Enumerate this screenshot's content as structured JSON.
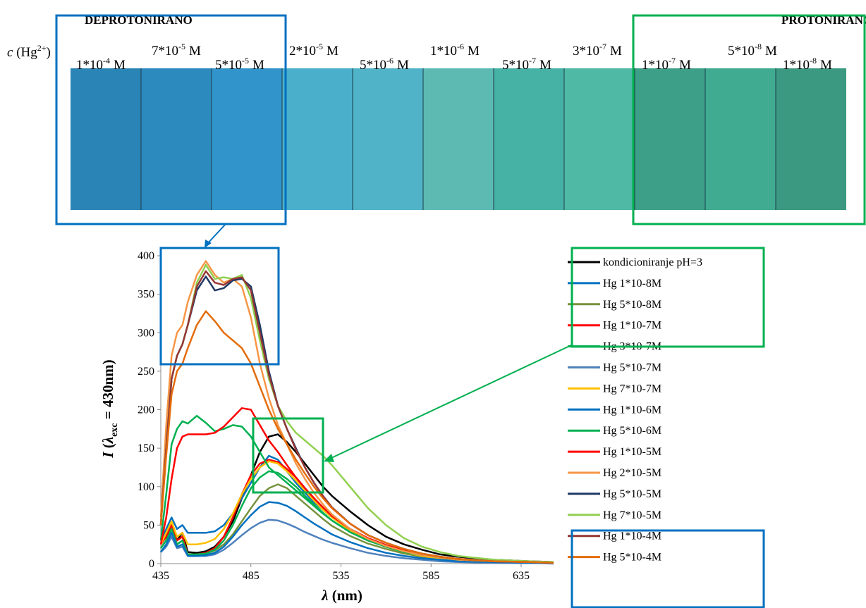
{
  "header": {
    "left": "DEPROTONIRANO",
    "right": "PROTONIRANO"
  },
  "strip": {
    "concentration_label": [
      "c",
      " (Hg",
      "2+",
      ")"
    ],
    "labels": [
      {
        "mantissa": "1*10",
        "exponent": "-4",
        "unit": "M"
      },
      {
        "mantissa": "7*10",
        "exponent": "-5",
        "unit": "M"
      },
      {
        "mantissa": "5*10",
        "exponent": "-5",
        "unit": "M"
      },
      {
        "mantissa": "2*10",
        "exponent": "-5",
        "unit": "M"
      },
      {
        "mantissa": "5*10",
        "exponent": "-6",
        "unit": "M"
      },
      {
        "mantissa": "1*10",
        "exponent": "-6",
        "unit": "M"
      },
      {
        "mantissa": "5*10",
        "exponent": "-7",
        "unit": "M"
      },
      {
        "mantissa": "3*10",
        "exponent": "-7",
        "unit": "M"
      },
      {
        "mantissa": "1*10",
        "exponent": "-7",
        "unit": "M"
      },
      {
        "mantissa": "5*10",
        "exponent": "-8",
        "unit": "M"
      },
      {
        "mantissa": "1*10",
        "exponent": "-8",
        "unit": "M"
      }
    ]
  },
  "chart_data": {
    "type": "line",
    "y_label": [
      "I",
      " (",
      "λ",
      "exc",
      " = 430nm)"
    ],
    "x_label": [
      "λ",
      " (nm)"
    ],
    "xlim": [
      435,
      653
    ],
    "xticks": [
      435,
      485,
      535,
      585,
      635
    ],
    "ylim": [
      0,
      400
    ],
    "yticks": [
      0,
      50,
      100,
      150,
      200,
      250,
      300,
      350,
      400
    ],
    "grid": false,
    "x": [
      435,
      438,
      441,
      444,
      447,
      450,
      455,
      460,
      465,
      470,
      475,
      480,
      485,
      490,
      495,
      500,
      505,
      510,
      515,
      520,
      525,
      530,
      540,
      550,
      560,
      570,
      580,
      590,
      600,
      620,
      640,
      653
    ],
    "series": [
      {
        "name": "kondicioniranje pH=3",
        "color": "#000000",
        "values": [
          25,
          35,
          50,
          30,
          40,
          15,
          14,
          16,
          22,
          35,
          55,
          85,
          115,
          145,
          165,
          168,
          158,
          145,
          130,
          115,
          100,
          88,
          68,
          50,
          35,
          25,
          18,
          12,
          9,
          5,
          3,
          2
        ]
      },
      {
        "name": "Hg 1*10-8M",
        "color": "#0070c0",
        "values": [
          30,
          45,
          60,
          45,
          50,
          40,
          40,
          40,
          42,
          50,
          65,
          85,
          105,
          125,
          140,
          135,
          120,
          105,
          92,
          80,
          70,
          60,
          45,
          33,
          24,
          17,
          12,
          9,
          6,
          4,
          2,
          1
        ]
      },
      {
        "name": "Hg 5*10-8M",
        "color": "#77933c",
        "values": [
          20,
          30,
          45,
          25,
          30,
          12,
          12,
          13,
          17,
          25,
          38,
          55,
          72,
          88,
          98,
          103,
          98,
          88,
          78,
          68,
          58,
          49,
          36,
          26,
          19,
          13,
          9,
          6,
          4,
          2,
          1,
          1
        ]
      },
      {
        "name": "Hg 1*10-7M",
        "color": "#ff0000",
        "values": [
          25,
          35,
          50,
          30,
          35,
          12,
          12,
          14,
          20,
          35,
          60,
          90,
          115,
          130,
          135,
          132,
          123,
          112,
          98,
          85,
          73,
          62,
          45,
          33,
          24,
          17,
          12,
          8,
          6,
          3,
          2,
          1
        ]
      },
      {
        "name": "Hg 3*10-7M",
        "color": "#00b050",
        "values": [
          20,
          30,
          45,
          25,
          30,
          12,
          12,
          13,
          18,
          30,
          50,
          75,
          98,
          112,
          120,
          118,
          110,
          100,
          88,
          77,
          66,
          56,
          41,
          30,
          22,
          15,
          11,
          7,
          5,
          3,
          2,
          1
        ]
      },
      {
        "name": "Hg 5*10-7M",
        "color": "#4f81bd",
        "values": [
          15,
          22,
          35,
          20,
          22,
          10,
          10,
          10,
          12,
          18,
          27,
          37,
          46,
          53,
          57,
          56,
          52,
          47,
          41,
          36,
          31,
          27,
          20,
          14,
          10,
          7,
          5,
          3,
          2,
          1,
          1,
          0
        ]
      },
      {
        "name": "Hg 7*10-7M",
        "color": "#ffc000",
        "values": [
          25,
          40,
          55,
          35,
          40,
          25,
          25,
          27,
          32,
          45,
          65,
          90,
          110,
          125,
          133,
          130,
          120,
          108,
          95,
          82,
          70,
          60,
          43,
          31,
          22,
          15,
          10,
          7,
          5,
          3,
          2,
          1
        ]
      },
      {
        "name": "Hg 1*10-6M",
        "color": "#0070c0",
        "values": [
          15,
          25,
          40,
          22,
          25,
          10,
          10,
          11,
          14,
          22,
          35,
          50,
          63,
          74,
          80,
          79,
          75,
          68,
          60,
          52,
          45,
          38,
          28,
          20,
          14,
          10,
          7,
          5,
          3,
          2,
          1,
          1
        ]
      },
      {
        "name": "Hg 5*10-6M",
        "color": "#00b050",
        "values": [
          30,
          90,
          155,
          175,
          185,
          182,
          192,
          183,
          172,
          175,
          180,
          178,
          165,
          145,
          125,
          115,
          105,
          95,
          85,
          75,
          65,
          56,
          41,
          30,
          22,
          15,
          11,
          8,
          5,
          3,
          2,
          1
        ]
      },
      {
        "name": "Hg 1*10-5M",
        "color": "#ff0000",
        "values": [
          25,
          60,
          110,
          150,
          165,
          168,
          168,
          168,
          170,
          178,
          190,
          202,
          200,
          180,
          160,
          145,
          128,
          112,
          98,
          85,
          73,
          62,
          45,
          33,
          24,
          17,
          12,
          8,
          6,
          3,
          2,
          1
        ]
      },
      {
        "name": "Hg 2*10-5M",
        "color": "#f79646",
        "values": [
          60,
          180,
          270,
          300,
          310,
          340,
          375,
          393,
          375,
          365,
          370,
          360,
          320,
          260,
          215,
          180,
          155,
          130,
          110,
          92,
          77,
          64,
          45,
          32,
          23,
          16,
          11,
          8,
          5,
          3,
          2,
          1
        ]
      },
      {
        "name": "Hg 5*10-5M",
        "color": "#1f3864",
        "values": [
          50,
          150,
          240,
          270,
          285,
          310,
          355,
          373,
          355,
          358,
          368,
          370,
          360,
          310,
          250,
          205,
          175,
          150,
          125,
          105,
          88,
          73,
          52,
          37,
          27,
          19,
          13,
          9,
          6,
          3,
          2,
          1
        ]
      },
      {
        "name": "Hg 7*10-5M",
        "color": "#92d050",
        "values": [
          50,
          150,
          240,
          270,
          285,
          310,
          365,
          388,
          370,
          372,
          370,
          375,
          345,
          290,
          240,
          205,
          185,
          170,
          160,
          150,
          140,
          128,
          100,
          72,
          50,
          33,
          22,
          15,
          10,
          5,
          3,
          2
        ]
      },
      {
        "name": "Hg 1*10-4M",
        "color": "#953735",
        "values": [
          50,
          150,
          240,
          270,
          285,
          310,
          360,
          380,
          365,
          362,
          370,
          372,
          355,
          300,
          245,
          205,
          175,
          148,
          125,
          105,
          88,
          73,
          52,
          37,
          27,
          19,
          13,
          9,
          6,
          3,
          2,
          1
        ]
      },
      {
        "name": "Hg 5*10-4M",
        "color": "#e46c0a",
        "values": [
          50,
          140,
          220,
          250,
          260,
          280,
          310,
          328,
          315,
          300,
          290,
          280,
          260,
          230,
          200,
          175,
          155,
          135,
          117,
          100,
          85,
          72,
          52,
          37,
          27,
          19,
          13,
          9,
          6,
          3,
          2,
          1
        ]
      }
    ]
  }
}
